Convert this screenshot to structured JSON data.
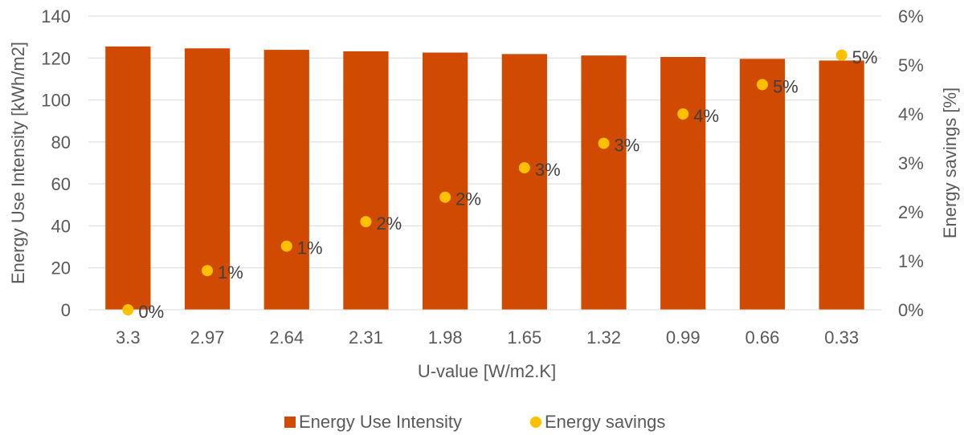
{
  "chart_data": {
    "type": "bar",
    "categories": [
      "3.3",
      "2.97",
      "2.64",
      "2.31",
      "1.98",
      "1.65",
      "1.32",
      "0.99",
      "0.66",
      "0.33"
    ],
    "series": [
      {
        "name": "Energy Use Intensity",
        "kind": "bar",
        "axis": "left",
        "color": "#D14A02",
        "values": [
          125.5,
          124.6,
          123.9,
          123.2,
          122.6,
          121.9,
          121.2,
          120.5,
          119.6,
          118.8
        ]
      },
      {
        "name": "Energy savings",
        "kind": "scatter",
        "axis": "right",
        "color": "#FFC000",
        "values": [
          0.0,
          0.8,
          1.3,
          1.8,
          2.3,
          2.9,
          3.4,
          4.0,
          4.6,
          5.2
        ],
        "labels": [
          "0%",
          "1%",
          "1%",
          "2%",
          "2%",
          "3%",
          "3%",
          "4%",
          "5%",
          "5%"
        ]
      }
    ],
    "xlabel": "U-value [W/m2.K]",
    "ylabel": "Energy Use Intensity [kWh/m2]",
    "y2label": "Energy savings [%]",
    "ylim": [
      0,
      140
    ],
    "y2lim": [
      0,
      6
    ],
    "yticks": [
      "0",
      "20",
      "40",
      "60",
      "80",
      "100",
      "120",
      "140"
    ],
    "y2ticks": [
      "0%",
      "1%",
      "2%",
      "3%",
      "4%",
      "5%",
      "6%"
    ],
    "grid": true,
    "legend": "bottom-center"
  }
}
